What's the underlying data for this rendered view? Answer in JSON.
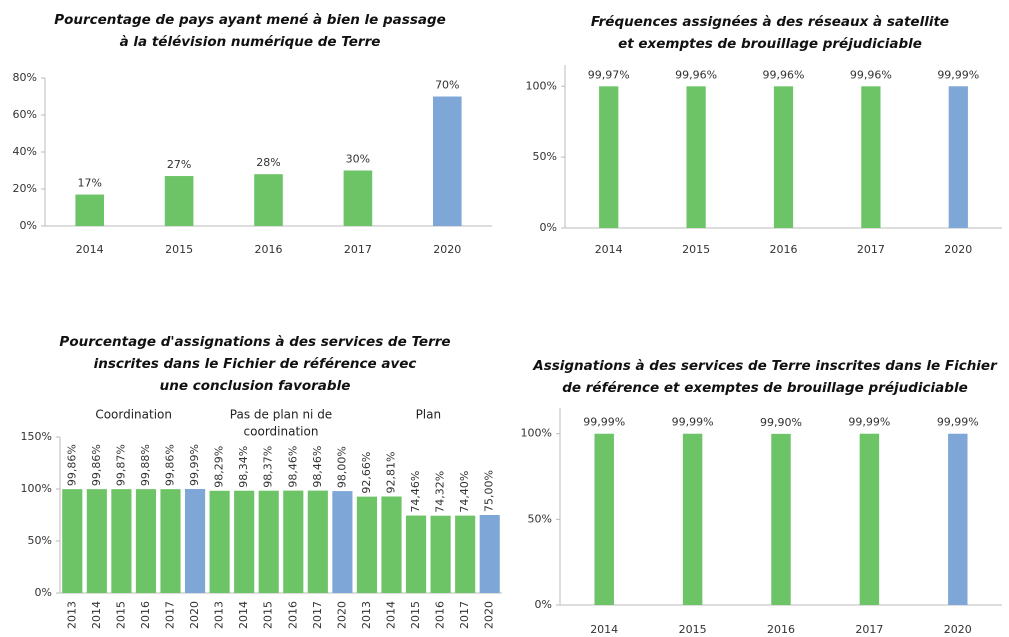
{
  "chart_data": [
    {
      "type": "bar",
      "title": [
        "Pourcentage  de pays ayant mené à bien le passage",
        "à la télévision numérique de Terre"
      ],
      "categories": [
        "2014",
        "2015",
        "2016",
        "2017",
        "2020"
      ],
      "values": [
        17,
        27,
        28,
        30,
        70
      ],
      "value_labels": [
        "17%",
        "27%",
        "28%",
        "30%",
        "70%"
      ],
      "colors": [
        "#6cc467",
        "#6cc467",
        "#6cc467",
        "#6cc467",
        "#7ea7d8"
      ],
      "ylim": [
        0,
        80
      ],
      "yticks": [
        {
          "value": 0,
          "label": "0%"
        },
        {
          "value": 20,
          "label": "20%"
        },
        {
          "value": 40,
          "label": "40%"
        },
        {
          "value": 60,
          "label": "60%"
        },
        {
          "value": 80,
          "label": "80%"
        }
      ]
    },
    {
      "type": "bar",
      "title": [
        "Fréquences assignées à des réseaux à satellite",
        "et exemptes de brouillage préjudiciable"
      ],
      "categories": [
        "2014",
        "2015",
        "2016",
        "2017",
        "2020"
      ],
      "values": [
        99.97,
        99.96,
        99.96,
        99.96,
        99.99
      ],
      "value_labels": [
        "99,97%",
        "99,96%",
        "99,96%",
        "99,96%",
        "99,99%"
      ],
      "colors": [
        "#6cc467",
        "#6cc467",
        "#6cc467",
        "#6cc467",
        "#7ea7d8"
      ],
      "ylim": [
        0,
        115
      ],
      "yticks": [
        {
          "value": 0,
          "label": "0%"
        },
        {
          "value": 50,
          "label": "50%"
        },
        {
          "value": 100,
          "label": "100%"
        }
      ]
    },
    {
      "type": "grouped-bar",
      "title": [
        "Pourcentage  d'assignations à des services de Terre",
        "inscrites dans le Fichier de référence avec",
        "une conclusion favorable"
      ],
      "groups": [
        {
          "label": [
            "Coordination"
          ],
          "categories": [
            "2013",
            "2014",
            "2015",
            "2016",
            "2017",
            "2020"
          ],
          "values": [
            99.86,
            99.86,
            99.87,
            99.88,
            99.86,
            99.99
          ],
          "value_labels": [
            "99,86%",
            "99,86%",
            "99,87%",
            "99,88%",
            "99,86%",
            "99,99%"
          ],
          "colors": [
            "#6cc467",
            "#6cc467",
            "#6cc467",
            "#6cc467",
            "#6cc467",
            "#7ea7d8"
          ]
        },
        {
          "label": [
            "Pas de plan ni de",
            "coordination"
          ],
          "categories": [
            "2013",
            "2014",
            "2015",
            "2016",
            "2017",
            "2020"
          ],
          "values": [
            98.29,
            98.34,
            98.37,
            98.46,
            98.46,
            98.0
          ],
          "value_labels": [
            "98,29%",
            "98,34%",
            "98,37%",
            "98,46%",
            "98,46%",
            "98,00%"
          ],
          "colors": [
            "#6cc467",
            "#6cc467",
            "#6cc467",
            "#6cc467",
            "#6cc467",
            "#7ea7d8"
          ]
        },
        {
          "label": [
            "Plan"
          ],
          "categories": [
            "2013",
            "2014",
            "2015",
            "2016",
            "2017",
            "2020"
          ],
          "values": [
            92.66,
            92.81,
            74.46,
            74.32,
            74.4,
            75.0
          ],
          "value_labels": [
            "92,66%",
            "92,81%",
            "74,46%",
            "74,32%",
            "74,40%",
            "75,00%"
          ],
          "colors": [
            "#6cc467",
            "#6cc467",
            "#6cc467",
            "#6cc467",
            "#6cc467",
            "#7ea7d8"
          ]
        }
      ],
      "ylim": [
        0,
        150
      ],
      "yticks": [
        {
          "value": 0,
          "label": "0%"
        },
        {
          "value": 50,
          "label": "50%"
        },
        {
          "value": 100,
          "label": "100%"
        },
        {
          "value": 150,
          "label": "150%"
        }
      ]
    },
    {
      "type": "bar",
      "title": [
        "Assignations à des services de Terre inscrites dans le Fichier",
        "de référence et exemptes de brouillage préjudiciable"
      ],
      "categories": [
        "2014",
        "2015",
        "2016",
        "2017",
        "2020"
      ],
      "values": [
        99.99,
        99.99,
        99.9,
        99.99,
        99.99
      ],
      "value_labels": [
        "99,99%",
        "99,99%",
        "99,90%",
        "99,99%",
        "99,99%"
      ],
      "colors": [
        "#6cc467",
        "#6cc467",
        "#6cc467",
        "#6cc467",
        "#7ea7d8"
      ],
      "ylim": [
        0,
        115
      ],
      "yticks": [
        {
          "value": 0,
          "label": "0%"
        },
        {
          "value": 50,
          "label": "50%"
        },
        {
          "value": 100,
          "label": "100%"
        }
      ]
    }
  ]
}
